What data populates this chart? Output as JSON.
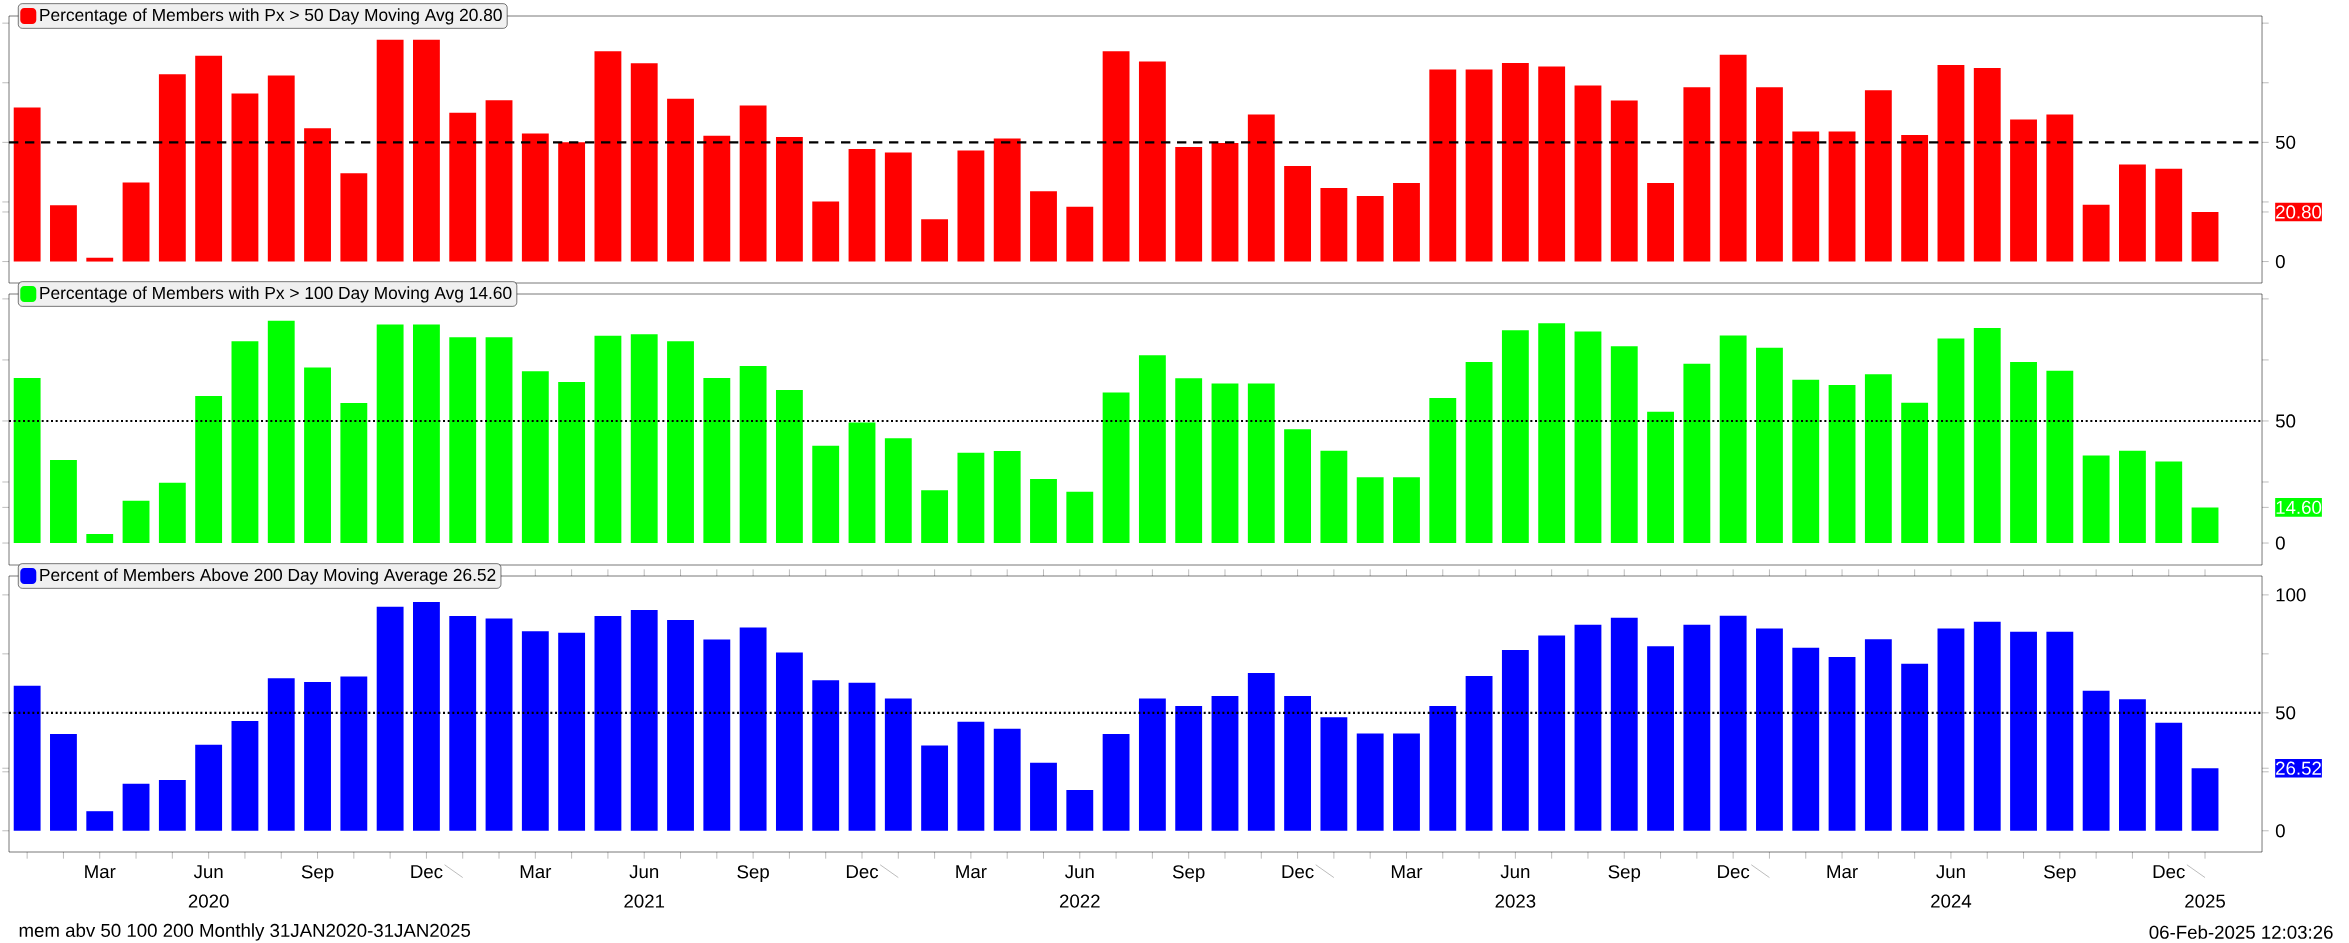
{
  "chart_data": [
    {
      "type": "bar",
      "categories": [
        null,
        null,
        null,
        null,
        null,
        null,
        null,
        null,
        null,
        null,
        null,
        null,
        null,
        null,
        null,
        null,
        null,
        null,
        null,
        null,
        null,
        null,
        null,
        null,
        null,
        null,
        null,
        null,
        null,
        null,
        null,
        null,
        null,
        null,
        null,
        null,
        null,
        null,
        null,
        null,
        null,
        null,
        null,
        null,
        null,
        null,
        null,
        null,
        null,
        null,
        null,
        null,
        null,
        null,
        null,
        null,
        null,
        null,
        null,
        null,
        null
      ],
      "series": [
        {
          "name": "Percentage of Members with Px > 50 Day Moving Avg 20.80",
          "color": "#ff0000",
          "values": [
            64.6,
            23.6,
            1.6,
            33.2,
            78.6,
            86.3,
            70.5,
            78,
            55.9,
            37,
            93,
            93,
            62.4,
            67.7,
            53.7,
            50,
            88.2,
            83.2,
            68.3,
            52.8,
            65.5,
            52.2,
            25.2,
            47.2,
            45.7,
            17.7,
            46.6,
            51.6,
            29.5,
            23,
            88.2,
            83.9,
            48.1,
            49.7,
            61.7,
            40.1,
            30.9,
            27.5,
            33,
            80.6,
            80.6,
            83.3,
            81.8,
            73.8,
            67.6,
            33,
            73.1,
            86.7,
            73.1,
            54.6,
            54.6,
            71.9,
            53.1,
            82.4,
            81.2,
            59.6,
            61.7,
            23.8,
            40.7,
            38.9,
            20.8
          ]
        }
      ],
      "ylim": [
        -9,
        103
      ],
      "yticks": [
        0,
        {
          "value": 20.8,
          "label": "20.80"
        },
        {
          "value": 25,
          "label": null
        },
        50,
        {
          "value": 75,
          "label": null
        },
        {
          "value": 100,
          "label": null
        }
      ],
      "ref_lines": [
        {
          "axis": "y",
          "value": 50,
          "line_style": "dashed",
          "color": "#000000"
        }
      ],
      "legend": "top left",
      "grid": false,
      "tick_labels": "y"
    },
    {
      "type": "bar",
      "categories": [
        null,
        null,
        null,
        null,
        null,
        null,
        null,
        null,
        null,
        null,
        null,
        null,
        null,
        null,
        null,
        null,
        null,
        null,
        null,
        null,
        null,
        null,
        null,
        null,
        null,
        null,
        null,
        null,
        null,
        null,
        null,
        null,
        null,
        null,
        null,
        null,
        null,
        null,
        null,
        null,
        null,
        null,
        null,
        null,
        null,
        null,
        null,
        null,
        null,
        null,
        null,
        null,
        null,
        null,
        null,
        null,
        null,
        null,
        null,
        null,
        null
      ],
      "series": [
        {
          "name": "Percentage of Members with Px > 100 Day Moving Avg 14.60",
          "color": "#00ff00",
          "values": [
            67.6,
            34,
            3.7,
            17.3,
            24.7,
            60.2,
            82.7,
            91,
            71.9,
            57.4,
            89.5,
            89.5,
            84.3,
            84.3,
            70.4,
            66,
            84.9,
            85.5,
            82.7,
            67.6,
            72.5,
            62.7,
            39.8,
            49.4,
            42.9,
            21.6,
            37,
            37.7,
            26.2,
            21,
            61.7,
            76.9,
            67.5,
            65.3,
            65.3,
            46.6,
            37.8,
            26.9,
            26.9,
            59.4,
            74.1,
            87.2,
            90,
            86.6,
            80.6,
            53.8,
            73.4,
            85,
            80,
            66.9,
            64.7,
            69.1,
            57.5,
            83.8,
            88.1,
            74.1,
            70.6,
            35.9,
            37.8,
            33.4,
            14.6
          ]
        }
      ],
      "ylim": [
        -9,
        102
      ],
      "yticks": [
        0,
        {
          "value": 14.6,
          "label": "14.60"
        },
        {
          "value": 25,
          "label": null
        },
        50,
        {
          "value": 75,
          "label": null
        },
        {
          "value": 100,
          "label": null
        }
      ],
      "ref_lines": [
        {
          "axis": "y",
          "value": 50,
          "line_style": "dotted",
          "color": "#000000"
        }
      ],
      "legend": "top left",
      "grid": false,
      "tick_labels": "y"
    },
    {
      "type": "bar",
      "categories": [
        null,
        null,
        "Mar",
        null,
        null,
        "Jun",
        null,
        null,
        "Sep",
        null,
        null,
        "Dec",
        null,
        null,
        "Mar",
        null,
        null,
        "Jun",
        null,
        null,
        "Sep",
        null,
        null,
        "Dec",
        null,
        null,
        "Mar",
        null,
        null,
        "Jun",
        null,
        null,
        "Sep",
        null,
        null,
        "Dec",
        null,
        null,
        "Mar",
        null,
        null,
        "Jun",
        null,
        null,
        "Sep",
        null,
        null,
        "Dec",
        null,
        null,
        "Mar",
        null,
        null,
        "Jun",
        null,
        null,
        "Sep",
        null,
        null,
        "Dec",
        null
      ],
      "series": [
        {
          "name": "Percent of Members Above 200 Day Moving Average 26.52",
          "color": "#0000ff",
          "values": [
            61.5,
            41,
            8.3,
            19.9,
            21.5,
            36.5,
            46.5,
            64.7,
            63.1,
            65.4,
            95,
            97,
            91,
            90,
            84.6,
            84,
            91,
            93.6,
            89.4,
            81.1,
            86.2,
            75.6,
            63.8,
            62.8,
            56.1,
            36.2,
            46.2,
            43.3,
            28.8,
            17.3,
            41,
            56.1,
            52.9,
            57.1,
            66.9,
            57.1,
            48.1,
            41.2,
            41.2,
            52.9,
            65.6,
            76.6,
            82.8,
            87.3,
            90.3,
            78.2,
            87.3,
            91.2,
            85.7,
            77.6,
            73.7,
            81.2,
            70.8,
            85.7,
            88.6,
            84.4,
            84.4,
            59.4,
            55.8,
            45.8,
            26.5
          ]
        }
      ],
      "ylim": [
        -9,
        108
      ],
      "yticks": [
        0,
        {
          "value": 25,
          "label": null
        },
        {
          "value": 26.52,
          "label": "26.52"
        },
        50,
        {
          "value": 75,
          "label": null
        },
        100
      ],
      "ref_lines": [
        {
          "axis": "y",
          "value": 50,
          "line_style": "dotted",
          "color": "#000000"
        }
      ],
      "legend": "top left",
      "grid": false,
      "annotations": [
        "2020",
        "2021",
        "2022",
        "2023",
        "2024",
        "2025",
        "mem abv 50 100 200  Monthly 31JAN2020-31JAN2025",
        "06-Feb-2025 12:03:26"
      ]
    }
  ]
}
